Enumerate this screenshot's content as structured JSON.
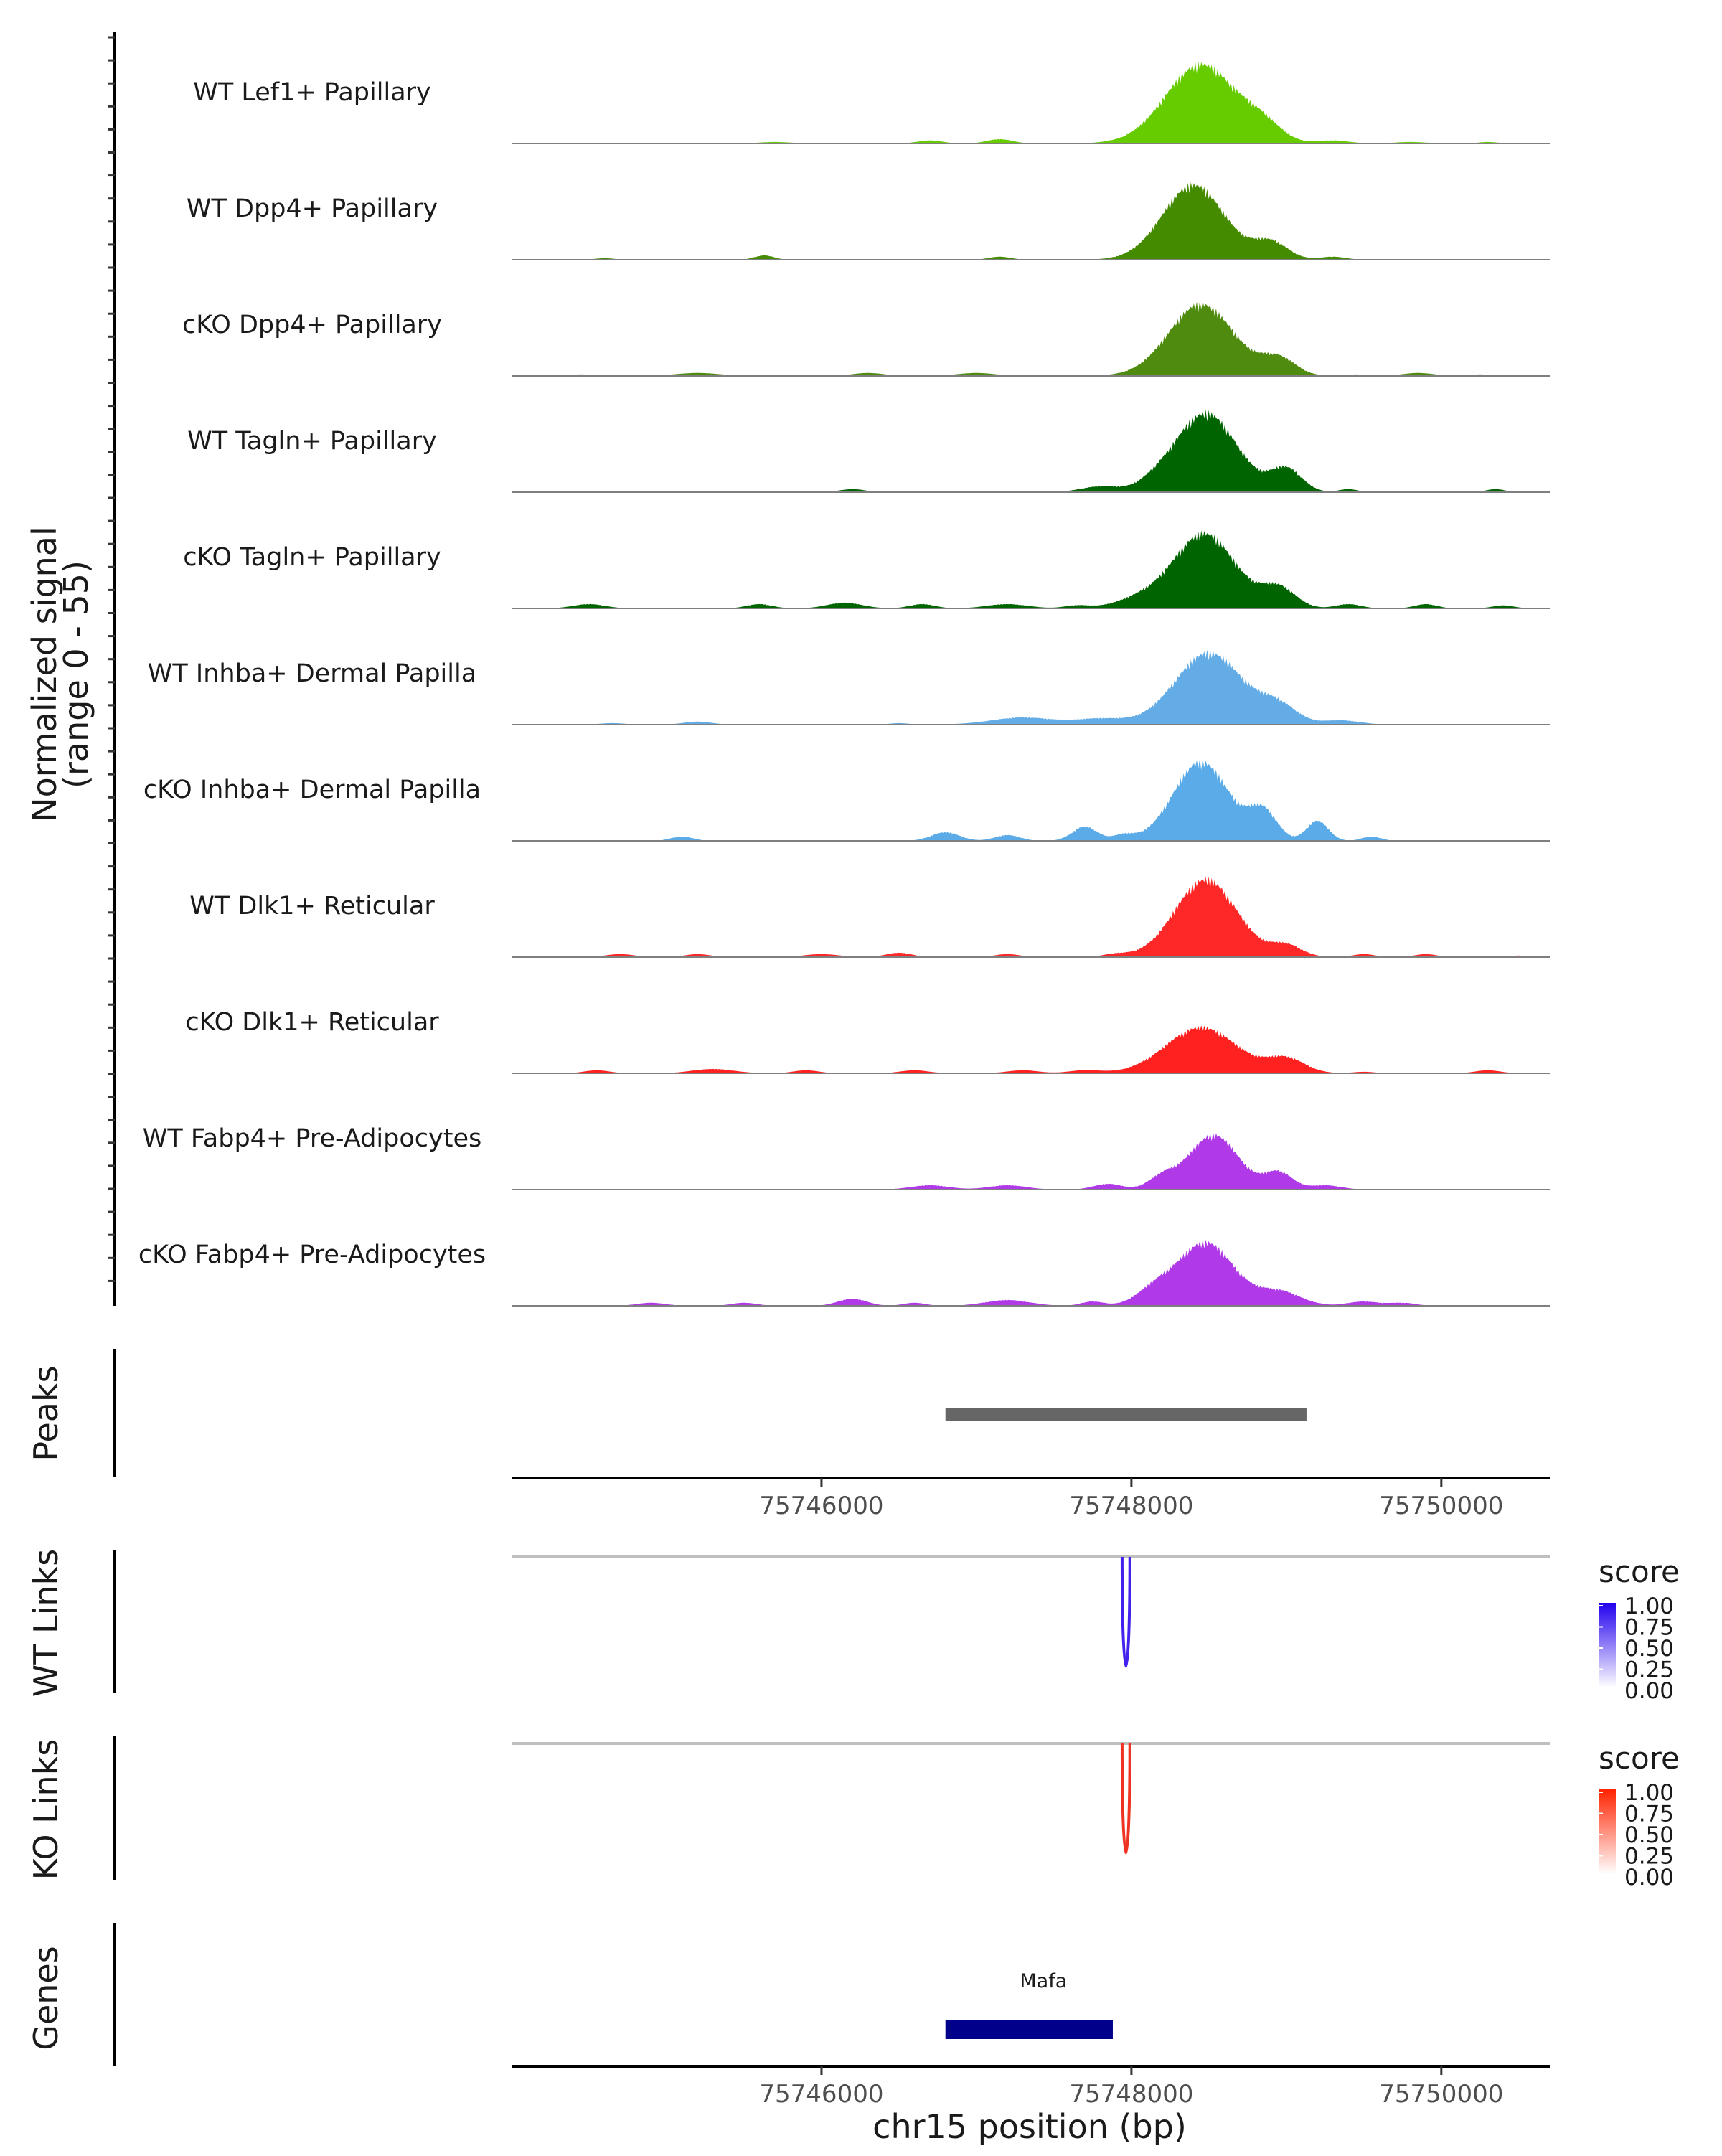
{
  "chart_data": {
    "type": "area",
    "title": "",
    "region": {
      "chrom": "chr15",
      "start": 75744000,
      "end": 75750700
    },
    "xlabel": "chr15 position (bp)",
    "x_ticks": [
      "75746000",
      "75748000",
      "75750000"
    ],
    "x_tick_values": [
      75746000,
      75748000,
      75750000
    ],
    "coverage": {
      "ylabel": "Normalized signal",
      "ylabel_range": "(range 0 - 55)",
      "ylim": [
        0,
        55
      ],
      "tracks": [
        {
          "name": "WT Lef1+ Papillary",
          "color": "#66cc00",
          "peaks": [
            [
              75748450,
              55,
              230
            ],
            [
              75748850,
              10,
              120
            ],
            [
              75747150,
              3,
              80
            ],
            [
              75746700,
              2,
              80
            ],
            [
              75745700,
              1,
              100
            ],
            [
              75749300,
              2,
              100
            ],
            [
              75749800,
              1,
              100
            ],
            [
              75750300,
              1,
              60
            ]
          ]
        },
        {
          "name": "WT Dpp4+ Papillary",
          "color": "#458b00",
          "peaks": [
            [
              75748400,
              52,
              200
            ],
            [
              75748900,
              12,
              110
            ],
            [
              75747150,
              2,
              70
            ],
            [
              75745630,
              3,
              60
            ],
            [
              75744600,
              1,
              60
            ],
            [
              75749300,
              2,
              80
            ]
          ]
        },
        {
          "name": "cKO Dpp4+ Papillary",
          "color": "#4f8b0f",
          "peaks": [
            [
              75748450,
              50,
              210
            ],
            [
              75748950,
              12,
              110
            ],
            [
              75747000,
              2,
              120
            ],
            [
              75746300,
              2,
              100
            ],
            [
              75745200,
              2,
              140
            ],
            [
              75744450,
              1,
              60
            ],
            [
              75749850,
              2,
              100
            ],
            [
              75749450,
              1,
              60
            ],
            [
              75750250,
              1,
              60
            ]
          ]
        },
        {
          "name": "WT Tagln+ Papillary",
          "color": "#006400",
          "peaks": [
            [
              75748480,
              55,
              200
            ],
            [
              75749000,
              16,
              100
            ],
            [
              75747800,
              4,
              120
            ],
            [
              75748150,
              4,
              110
            ],
            [
              75746200,
              2,
              80
            ],
            [
              75749400,
              2,
              60
            ],
            [
              75750350,
              2,
              60
            ]
          ]
        },
        {
          "name": "cKO Tagln+ Papillary",
          "color": "#006400",
          "peaks": [
            [
              75748470,
              52,
              200
            ],
            [
              75748950,
              14,
              110
            ],
            [
              75748050,
              6,
              160
            ],
            [
              75744500,
              3,
              100
            ],
            [
              75745600,
              3,
              80
            ],
            [
              75746150,
              4,
              110
            ],
            [
              75746650,
              3,
              80
            ],
            [
              75747200,
              3,
              130
            ],
            [
              75747650,
              2,
              80
            ],
            [
              75749400,
              3,
              80
            ],
            [
              75749900,
              3,
              70
            ],
            [
              75750400,
              2,
              70
            ]
          ]
        },
        {
          "name": "WT Inhba+ Dermal Papilla",
          "color": "#63ace5",
          "peaks": [
            [
              75748500,
              50,
              220
            ],
            [
              75748950,
              12,
              120
            ],
            [
              75747300,
              5,
              200
            ],
            [
              75747800,
              4,
              160
            ],
            [
              75745200,
              2,
              90
            ],
            [
              75744650,
              1,
              80
            ],
            [
              75746500,
              1,
              60
            ],
            [
              75749350,
              3,
              120
            ]
          ]
        },
        {
          "name": "cKO Inhba+ Dermal Papilla",
          "color": "#5aabe8",
          "peaks": [
            [
              75748450,
              55,
              180
            ],
            [
              75748850,
              20,
              90
            ],
            [
              75749200,
              14,
              70
            ],
            [
              75747700,
              10,
              80
            ],
            [
              75746800,
              6,
              90
            ],
            [
              75747200,
              4,
              80
            ],
            [
              75745100,
              3,
              70
            ],
            [
              75747950,
              4,
              70
            ],
            [
              75749550,
              3,
              60
            ]
          ]
        },
        {
          "name": "WT Dlk1+ Reticular",
          "color": "#ff2828",
          "peaks": [
            [
              75748480,
              54,
              200
            ],
            [
              75749000,
              8,
              100
            ],
            [
              75744700,
              2,
              90
            ],
            [
              75745200,
              2,
              80
            ],
            [
              75746000,
              2,
              110
            ],
            [
              75746500,
              3,
              80
            ],
            [
              75747200,
              2,
              80
            ],
            [
              75747900,
              2,
              80
            ],
            [
              75749500,
              2,
              70
            ],
            [
              75749900,
              2,
              70
            ],
            [
              75750500,
              1,
              70
            ]
          ]
        },
        {
          "name": "cKO Dlk1+ Reticular",
          "color": "#ff2020",
          "peaks": [
            [
              75748450,
              32,
              230
            ],
            [
              75749000,
              10,
              120
            ],
            [
              75744550,
              2,
              80
            ],
            [
              75745300,
              3,
              130
            ],
            [
              75745900,
              2,
              80
            ],
            [
              75746600,
              2,
              90
            ],
            [
              75747300,
              2,
              100
            ],
            [
              75747700,
              2,
              100
            ],
            [
              75749500,
              1,
              70
            ],
            [
              75750300,
              2,
              80
            ]
          ]
        },
        {
          "name": "WT Fabp4+ Pre-Adipocytes",
          "color": "#b03ae8",
          "peaks": [
            [
              75748530,
              38,
              160
            ],
            [
              75748950,
              12,
              90
            ],
            [
              75748200,
              8,
              90
            ],
            [
              75746700,
              3,
              120
            ],
            [
              75747200,
              3,
              120
            ],
            [
              75747850,
              4,
              90
            ],
            [
              75749250,
              3,
              100
            ]
          ]
        },
        {
          "name": "cKO Fabp4+ Pre-Adipocytes",
          "color": "#b03ae8",
          "peaks": [
            [
              75748480,
              44,
              180
            ],
            [
              75748950,
              10,
              140
            ],
            [
              75748150,
              10,
              120
            ],
            [
              75746200,
              5,
              90
            ],
            [
              75744900,
              2,
              90
            ],
            [
              75745500,
              2,
              80
            ],
            [
              75746600,
              2,
              70
            ],
            [
              75747200,
              4,
              140
            ],
            [
              75747750,
              3,
              70
            ],
            [
              75749500,
              3,
              100
            ],
            [
              75749750,
              2,
              80
            ]
          ]
        }
      ]
    },
    "peaks_track": {
      "label": "Peaks",
      "color": "#666666",
      "intervals": [
        [
          75746800,
          75749130
        ]
      ]
    },
    "link_tracks": [
      {
        "label": "WT Links",
        "color": "#4422ee",
        "links": [
          {
            "start": 75747940,
            "end": 75747990,
            "score": 1.0
          }
        ],
        "legend": {
          "title": "score",
          "ticks": [
            "1.00",
            "0.75",
            "0.50",
            "0.25",
            "0.00"
          ],
          "low_color": "#ffffff",
          "high_color": "#2200ee"
        }
      },
      {
        "label": "KO Links",
        "color": "#ee3322",
        "links": [
          {
            "start": 75747940,
            "end": 75747990,
            "score": 1.0
          }
        ],
        "legend": {
          "title": "score",
          "ticks": [
            "1.00",
            "0.75",
            "0.50",
            "0.25",
            "0.00"
          ],
          "low_color": "#ffffff",
          "high_color": "#ff2200"
        }
      }
    ],
    "genes_track": {
      "label": "Genes",
      "color": "#00008b",
      "genes": [
        {
          "name": "Mafa",
          "start": 75746800,
          "end": 75747880
        }
      ]
    }
  }
}
